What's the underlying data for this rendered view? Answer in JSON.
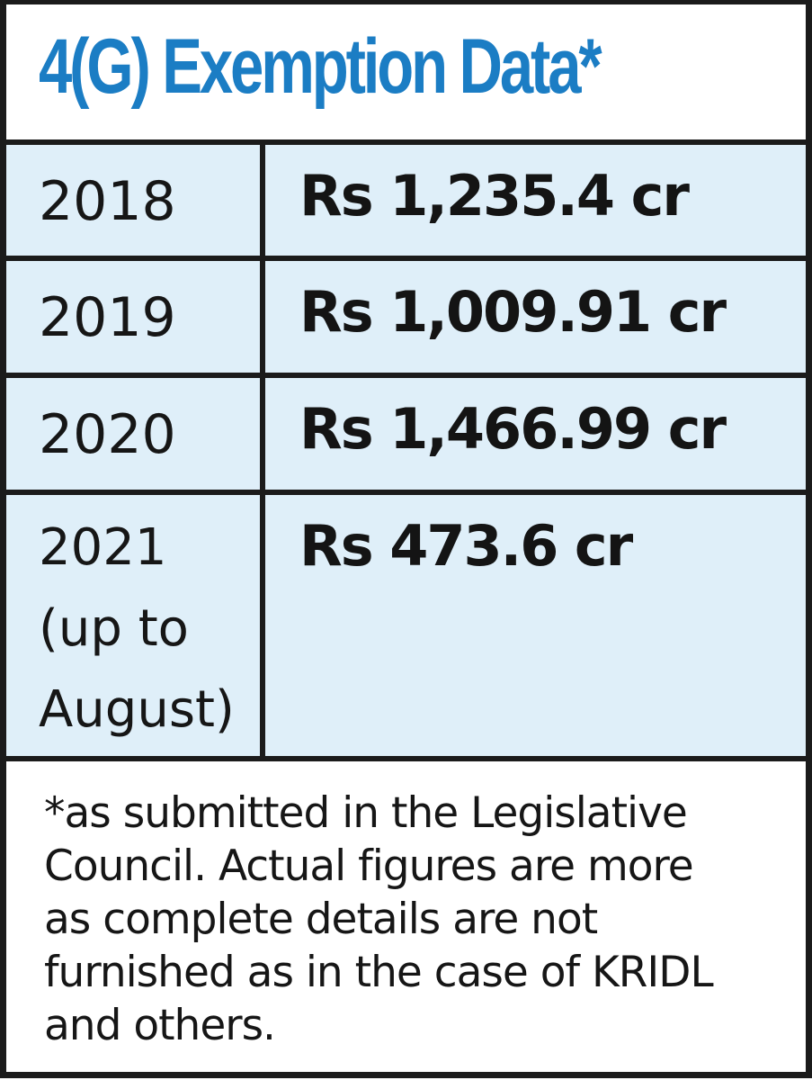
{
  "title": "4(G) Exemption Data*",
  "colors": {
    "title": "#1b7dc4",
    "row_background": "#dfeff9",
    "border": "#1b1b1b"
  },
  "chart_data": {
    "type": "table",
    "title": "4(G) Exemption Data*",
    "rows": [
      {
        "year": "2018",
        "year_note": "",
        "value": "Rs 1,235.4 cr"
      },
      {
        "year": "2019",
        "year_note": "",
        "value": "Rs 1,009.91 cr"
      },
      {
        "year": "2020",
        "year_note": "",
        "value": "Rs 1,466.99 cr"
      },
      {
        "year": "2021",
        "year_note_1": "(up to",
        "year_note_2": "August)",
        "value": "Rs 473.6 cr"
      }
    ]
  },
  "footnote": {
    "lines": [
      "*as submitted in the Legislative",
      "Council. Actual figures are more",
      "as complete details are not",
      "furnished as in the case of KRIDL",
      "and others."
    ]
  }
}
